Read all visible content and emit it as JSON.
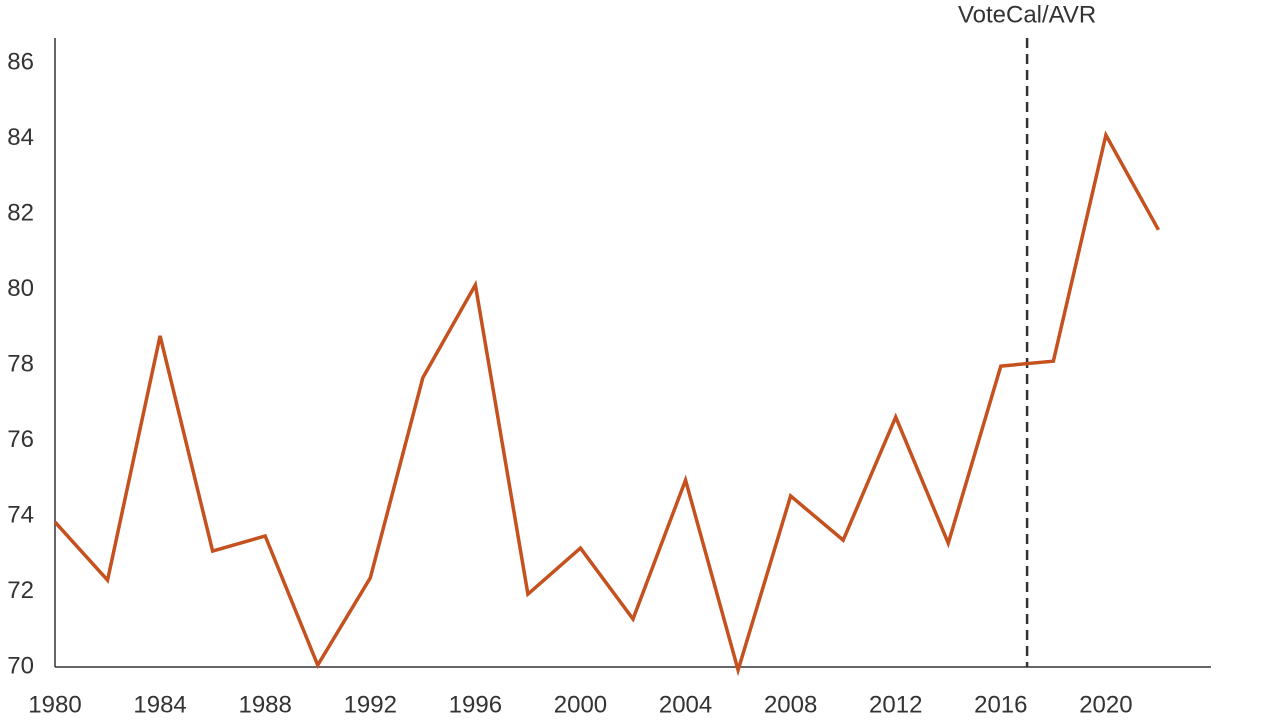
{
  "chart_data": {
    "type": "line",
    "x": [
      1980,
      1982,
      1984,
      1986,
      1988,
      1990,
      1992,
      1994,
      1996,
      1998,
      2000,
      2002,
      2004,
      2006,
      2008,
      2010,
      2012,
      2014,
      2016,
      2018,
      2020,
      2022
    ],
    "series": [
      {
        "color": "#c5511f",
        "values": [
          73.84,
          72.3,
          78.77,
          73.07,
          73.47,
          70.05,
          72.36,
          77.66,
          80.12,
          71.93,
          73.15,
          71.27,
          74.95,
          69.92,
          74.53,
          73.36,
          76.62,
          73.28,
          77.97,
          78.1,
          84.09,
          81.58
        ]
      }
    ],
    "xlim": [
      1980,
      2024
    ],
    "xticks": [
      1980,
      1984,
      1988,
      1992,
      1996,
      2000,
      2004,
      2008,
      2012,
      2016,
      2020
    ],
    "ylim": [
      70,
      86.66
    ],
    "yticks": [
      70,
      72,
      74,
      76,
      78,
      80,
      82,
      84,
      86
    ],
    "grid": false,
    "annotation": {
      "text": "VoteCal/AVR",
      "x": 2017
    }
  }
}
